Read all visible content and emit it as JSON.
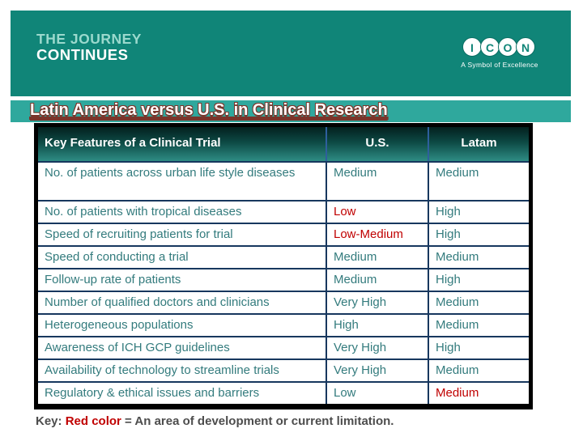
{
  "banner": {
    "journey_line1": "THE JOURNEY",
    "journey_line2": "CONTINUES",
    "logo": {
      "letters": [
        "I",
        "C",
        "O",
        "N"
      ],
      "tagline": "A Symbol of Excellence"
    }
  },
  "title": "Latin America versus U.S. in Clinical Research",
  "table": {
    "columns": [
      "Key Features of a Clinical Trial",
      "U.S.",
      "Latam"
    ],
    "rows": [
      {
        "feature": "No. of patients across urban life style diseases",
        "us": "Medium",
        "latam": "Medium",
        "us_red": false,
        "latam_red": false
      },
      {
        "feature": "No. of patients with tropical diseases",
        "us": "Low",
        "latam": "High",
        "us_red": true,
        "latam_red": false
      },
      {
        "feature": "Speed of recruiting patients for trial",
        "us": "Low-Medium",
        "latam": "High",
        "us_red": true,
        "latam_red": false
      },
      {
        "feature": "Speed of conducting a trial",
        "us": "Medium",
        "latam": "Medium",
        "us_red": false,
        "latam_red": false
      },
      {
        "feature": "Follow-up rate of patients",
        "us": "Medium",
        "latam": "High",
        "us_red": false,
        "latam_red": false
      },
      {
        "feature": "Number of qualified doctors and clinicians",
        "us": "Very High",
        "latam": "Medium",
        "us_red": false,
        "latam_red": false
      },
      {
        "feature": "Heterogeneous populations",
        "us": "High",
        "latam": "Medium",
        "us_red": false,
        "latam_red": false
      },
      {
        "feature": "Awareness of ICH GCP guidelines",
        "us": "Very High",
        "latam": "High",
        "us_red": false,
        "latam_red": false
      },
      {
        "feature": "Availability of technology to streamline trials",
        "us": "Very High",
        "latam": "Medium",
        "us_red": false,
        "latam_red": false
      },
      {
        "feature": "Regulatory & ethical issues and barriers",
        "us": "Low",
        "latam": "Medium",
        "us_red": false,
        "latam_red": true
      }
    ]
  },
  "key": {
    "label": "Key:",
    "red_term": "Red color",
    "rest": " = An area of development or current limitation."
  },
  "colors": {
    "banner_teal": "#108578",
    "title_strip_teal": "#2FA89D",
    "cell_text_teal": "#337B7D",
    "limitation_red": "#C00000",
    "grid_navy": "#17375E",
    "title_outline_maroon": "#7A352B"
  }
}
